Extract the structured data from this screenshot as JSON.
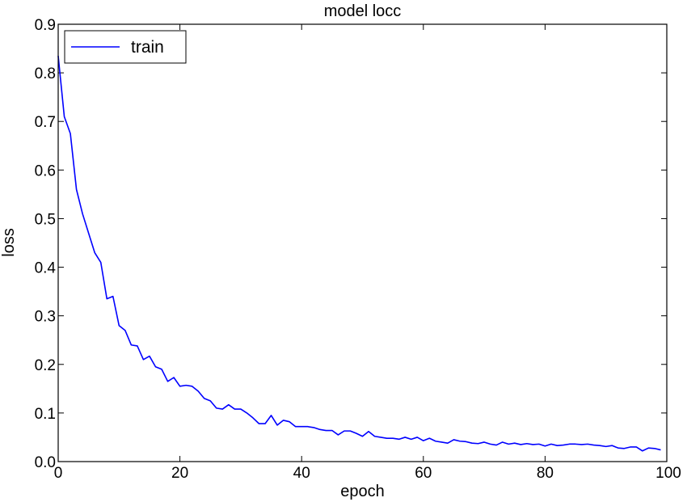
{
  "chart_data": {
    "type": "line",
    "title": "model locc",
    "xlabel": "epoch",
    "ylabel": "loss",
    "xlim": [
      0,
      100
    ],
    "ylim": [
      0.0,
      0.9
    ],
    "xticks": [
      0,
      20,
      40,
      60,
      80,
      100
    ],
    "xtick_labels": [
      "0",
      "20",
      "40",
      "60",
      "80",
      "100"
    ],
    "yticks": [
      0.0,
      0.1,
      0.2,
      0.3,
      0.4,
      0.5,
      0.6,
      0.7,
      0.8,
      0.9
    ],
    "ytick_labels": [
      "0.0",
      "0.1",
      "0.2",
      "0.3",
      "0.4",
      "0.5",
      "0.6",
      "0.7",
      "0.8",
      "0.9"
    ],
    "grid": false,
    "legend": {
      "location": "top-left",
      "entries": [
        "train"
      ]
    },
    "series": [
      {
        "name": "train",
        "color": "#0000ff",
        "x": [
          0,
          1,
          2,
          3,
          4,
          5,
          6,
          7,
          8,
          9,
          10,
          11,
          12,
          13,
          14,
          15,
          16,
          17,
          18,
          19,
          20,
          21,
          22,
          23,
          24,
          25,
          26,
          27,
          28,
          29,
          30,
          31,
          32,
          33,
          34,
          35,
          36,
          37,
          38,
          39,
          40,
          41,
          42,
          43,
          44,
          45,
          46,
          47,
          48,
          49,
          50,
          51,
          52,
          53,
          54,
          55,
          56,
          57,
          58,
          59,
          60,
          61,
          62,
          63,
          64,
          65,
          66,
          67,
          68,
          69,
          70,
          71,
          72,
          73,
          74,
          75,
          76,
          77,
          78,
          79,
          80,
          81,
          82,
          83,
          84,
          85,
          86,
          87,
          88,
          89,
          90,
          91,
          92,
          93,
          94,
          95,
          96,
          97,
          98,
          99
        ],
        "values": [
          0.835,
          0.71,
          0.675,
          0.56,
          0.51,
          0.47,
          0.43,
          0.41,
          0.335,
          0.34,
          0.28,
          0.27,
          0.24,
          0.238,
          0.21,
          0.217,
          0.195,
          0.19,
          0.165,
          0.173,
          0.155,
          0.157,
          0.155,
          0.145,
          0.13,
          0.125,
          0.11,
          0.108,
          0.117,
          0.108,
          0.108,
          0.1,
          0.09,
          0.078,
          0.078,
          0.095,
          0.075,
          0.085,
          0.082,
          0.072,
          0.072,
          0.072,
          0.07,
          0.066,
          0.064,
          0.064,
          0.055,
          0.063,
          0.063,
          0.058,
          0.052,
          0.062,
          0.052,
          0.05,
          0.048,
          0.048,
          0.046,
          0.05,
          0.046,
          0.05,
          0.043,
          0.048,
          0.042,
          0.04,
          0.038,
          0.045,
          0.042,
          0.041,
          0.038,
          0.037,
          0.04,
          0.036,
          0.034,
          0.04,
          0.036,
          0.038,
          0.035,
          0.037,
          0.035,
          0.036,
          0.032,
          0.036,
          0.033,
          0.034,
          0.036,
          0.036,
          0.035,
          0.036,
          0.034,
          0.033,
          0.031,
          0.033,
          0.028,
          0.027,
          0.03,
          0.03,
          0.022,
          0.028,
          0.027,
          0.024
        ]
      }
    ]
  }
}
